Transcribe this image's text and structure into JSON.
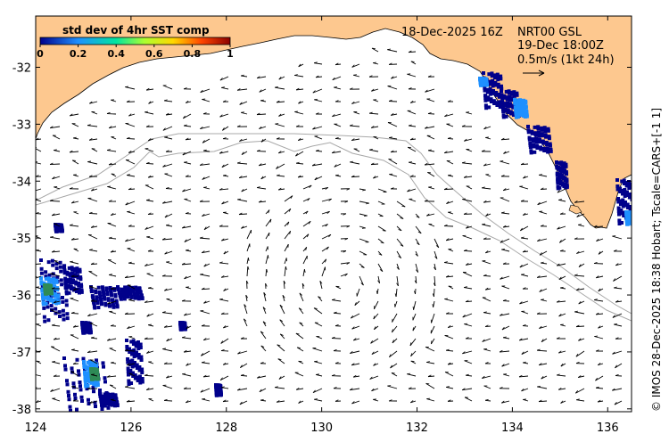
{
  "map": {
    "x_ticks": [
      "124",
      "126",
      "128",
      "130",
      "132",
      "134",
      "136"
    ],
    "y_ticks": [
      "-32",
      "-33",
      "-34",
      "-35",
      "-36",
      "-37",
      "-38"
    ],
    "x_range": [
      124,
      136.5
    ],
    "y_range": [
      -38.05,
      -31.1
    ]
  },
  "header": {
    "date": "18-Dec-2025 16Z",
    "product": "NRT00 GSL",
    "valid": "19-Dec 18:00Z",
    "scale": "0.5m/s (1kt 24h)"
  },
  "colorbar": {
    "title": "std dev of 4hr SST comp",
    "ticks": [
      "0",
      "0.2",
      "0.4",
      "0.6",
      "0.8",
      "1"
    ]
  },
  "credit": "© IMOS 28-Dec-2025 18:38 Hobart; Tscale=CARS+[-1 1]",
  "colors": {
    "land": "#fdc88f",
    "coast": "#000000",
    "isobath": "#a8a8a8",
    "arrow": "#000000",
    "sst_low": "#00008b",
    "sst_mid": "#1e90ff",
    "sst_green": "#2e8b57"
  }
}
